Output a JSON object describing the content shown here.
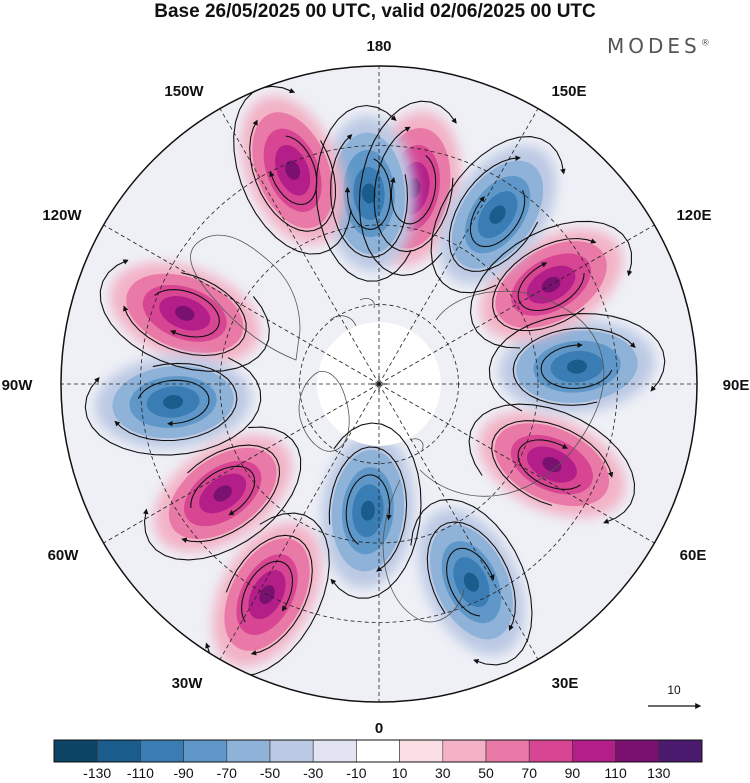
{
  "title": "Base 26/05/2025 00 UTC, valid 02/06/2025 00 UTC",
  "brand": "MODES",
  "brand_mark": "®",
  "longitude_labels": {
    "lon_180": "180",
    "lon_150E": "150E",
    "lon_120E": "120E",
    "lon_90E": "90E",
    "lon_60E": "60E",
    "lon_30E": "30E",
    "lon_0": "0",
    "lon_30W": "30W",
    "lon_60W": "60W",
    "lon_90W": "90W",
    "lon_120W": "120W",
    "lon_150W": "150W"
  },
  "reference_vector": {
    "value": "10"
  },
  "colorbar": {
    "levels": [
      "-130",
      "-110",
      "-90",
      "-70",
      "-50",
      "-30",
      "-10",
      "10",
      "30",
      "50",
      "70",
      "90",
      "110",
      "130"
    ],
    "colors": [
      "#0c4466",
      "#1a5c8c",
      "#3a7cb4",
      "#5f98c8",
      "#8eb2d8",
      "#bcc9e4",
      "#e2e4f2",
      "#ffffff",
      "#f9dfe3",
      "#f3b2c6",
      "#e97aa7",
      "#d84693",
      "#b41e88",
      "#7a1070",
      "#4a1a6e"
    ]
  },
  "map_features": {
    "projection": "north-polar-stereographic",
    "field_colors": {
      "positive": "#d84693",
      "negative": "#3a7cb4"
    },
    "anomaly_centers": [
      {
        "name": "pacific-high",
        "sign": "positive",
        "lon": 170,
        "lat": 40
      },
      {
        "name": "north-pacific-low-east",
        "sign": "negative",
        "lon": -177,
        "lat": 42
      },
      {
        "name": "alaska-high",
        "sign": "positive",
        "lon": -158,
        "lat": 32
      },
      {
        "name": "north-america-high",
        "sign": "positive",
        "lon": -110,
        "lat": 38
      },
      {
        "name": "canada-low",
        "sign": "negative",
        "lon": -85,
        "lat": 38
      },
      {
        "name": "atlantic-high",
        "sign": "positive",
        "lon": -55,
        "lat": 42
      },
      {
        "name": "north-atlantic-high",
        "sign": "positive",
        "lon": -28,
        "lat": 30
      },
      {
        "name": "europe-low",
        "sign": "negative",
        "lon": -5,
        "lat": 58
      },
      {
        "name": "mediterranean-low",
        "sign": "negative",
        "lon": 25,
        "lat": 35
      },
      {
        "name": "central-asia-high",
        "sign": "positive",
        "lon": 65,
        "lat": 42
      },
      {
        "name": "siberia-low",
        "sign": "negative",
        "lon": 95,
        "lat": 40
      },
      {
        "name": "east-asia-high",
        "sign": "positive",
        "lon": 120,
        "lat": 40
      },
      {
        "name": "japan-low",
        "sign": "negative",
        "lon": 145,
        "lat": 38
      }
    ]
  }
}
